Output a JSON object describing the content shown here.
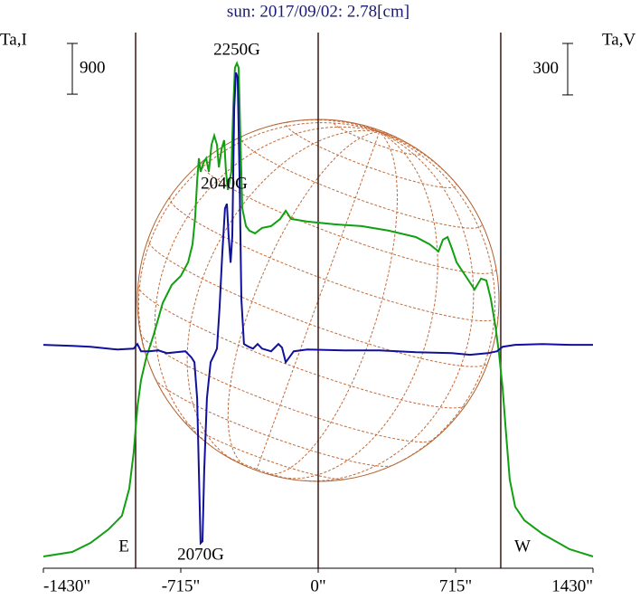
{
  "chart_data": {
    "type": "line",
    "title": "sun: 2017/09/02: 2.78[cm]",
    "y_label": "Ta,I",
    "y2_label": "Ta,V",
    "xlim": [
      -1430,
      1430
    ],
    "xticks": [
      {
        "value": -1430,
        "label": "-1430\""
      },
      {
        "value": -715,
        "label": "-715\""
      },
      {
        "value": 0,
        "label": "0\""
      },
      {
        "value": 715,
        "label": "715\""
      },
      {
        "value": 1430,
        "label": "1430\""
      }
    ],
    "ylim": [
      0,
      9500
    ],
    "y2lim": [
      -1290,
      1830
    ],
    "limb_lines": [
      -950,
      0,
      950
    ],
    "scale_bars": [
      {
        "value": 900
      },
      {
        "value": 300,
        "axis": "y2"
      }
    ],
    "annotations": [
      "2250G",
      "2040G",
      "2070G",
      "E",
      "W"
    ],
    "series": [
      {
        "name": "I",
        "color": "#10a010",
        "x": [
          -1430,
          -1280,
          -1185,
          -1091,
          -1021,
          -983,
          -960,
          -941,
          -922,
          -894,
          -856,
          -809,
          -762,
          -715,
          -677,
          -654,
          -640,
          -630,
          -621,
          -612,
          -597,
          -583,
          -569,
          -555,
          -541,
          -527,
          -517,
          -503,
          -489,
          -480,
          -470,
          -461,
          -452,
          -442,
          -433,
          -423,
          -414,
          -405,
          -395,
          -376,
          -358,
          -329,
          -292,
          -245,
          -198,
          -169,
          -141,
          -56,
          85,
          226,
          367,
          508,
          579,
          626,
          649,
          673,
          696,
          720,
          767,
          814,
          847,
          875,
          898,
          922,
          941,
          960,
          978,
          997,
          1025,
          1073,
          1167,
          1308,
          1430
        ],
        "values": [
          209,
          289,
          449,
          690,
          931,
          1412,
          2054,
          2857,
          3338,
          3740,
          4141,
          4703,
          5024,
          5184,
          5425,
          5746,
          6227,
          6869,
          7271,
          7030,
          7190,
          7271,
          7030,
          7511,
          7672,
          7511,
          7110,
          7431,
          7592,
          7030,
          6709,
          6869,
          7030,
          8153,
          8876,
          8956,
          8876,
          7672,
          6388,
          6067,
          5987,
          5939,
          6035,
          6067,
          6195,
          6340,
          6195,
          6147,
          6099,
          6067,
          5987,
          5874,
          5746,
          5618,
          5826,
          5874,
          5666,
          5425,
          5184,
          4943,
          5136,
          5104,
          4783,
          4301,
          3820,
          3178,
          2375,
          1573,
          1091,
          851,
          610,
          337,
          209
        ]
      },
      {
        "name": "V",
        "color": "#10109a",
        "axis": "y2",
        "x": [
          -1430,
          -1280,
          -1185,
          -1044,
          -960,
          -941,
          -922,
          -880,
          -833,
          -786,
          -739,
          -691,
          -659,
          -644,
          -630,
          -621,
          -612,
          -602,
          -593,
          -579,
          -560,
          -541,
          -527,
          -513,
          -499,
          -485,
          -475,
          -466,
          -456,
          -447,
          -437,
          -428,
          -419,
          -409,
          -400,
          -386,
          -362,
          -339,
          -315,
          -292,
          -245,
          -207,
          -188,
          -169,
          -151,
          -127,
          -56,
          132,
          320,
          508,
          696,
          790,
          884,
          931,
          960,
          1025,
          1167,
          1308,
          1430
        ],
        "values": [
          11,
          5,
          0,
          -16,
          -11,
          16,
          -26,
          -26,
          -21,
          -37,
          -32,
          -26,
          -63,
          -90,
          -300,
          -722,
          -1144,
          -1133,
          -722,
          -300,
          -90,
          -47,
          -11,
          227,
          543,
          806,
          833,
          648,
          490,
          648,
          1386,
          1597,
          1570,
          964,
          279,
          16,
          0,
          -11,
          16,
          -11,
          -26,
          16,
          -5,
          -90,
          -63,
          -26,
          -16,
          -21,
          -21,
          -32,
          -37,
          -47,
          -37,
          -26,
          0,
          11,
          16,
          11,
          11
        ]
      }
    ]
  }
}
